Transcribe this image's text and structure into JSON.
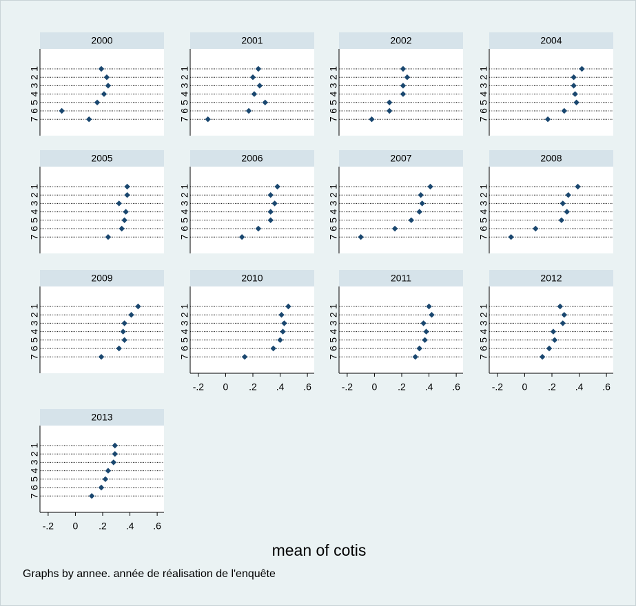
{
  "chart_data": [
    {
      "type": "dot",
      "title": "2000",
      "categories": [
        "1",
        "2",
        "3",
        "4",
        "5",
        "6",
        "7"
      ],
      "values": [
        0.19,
        0.23,
        0.24,
        0.21,
        0.16,
        -0.1,
        0.1
      ],
      "color": "#1a476f",
      "xlim": [
        -0.26,
        0.65
      ]
    },
    {
      "type": "dot",
      "title": "2001",
      "categories": [
        "1",
        "2",
        "3",
        "4",
        "5",
        "6",
        "7"
      ],
      "values": [
        0.24,
        0.2,
        0.25,
        0.21,
        0.29,
        0.17,
        -0.13
      ],
      "color": "#1a476f",
      "xlim": [
        -0.26,
        0.65
      ]
    },
    {
      "type": "dot",
      "title": "2002",
      "categories": [
        "1",
        "2",
        "3",
        "4",
        "5",
        "6",
        "7"
      ],
      "values": [
        0.21,
        0.24,
        0.21,
        0.21,
        0.11,
        0.11,
        -0.02
      ],
      "color": "#1a476f",
      "xlim": [
        -0.26,
        0.65
      ]
    },
    {
      "type": "dot",
      "title": "2004",
      "categories": [
        "1",
        "2",
        "3",
        "4",
        "5",
        "6",
        "7"
      ],
      "values": [
        0.42,
        0.36,
        0.36,
        0.37,
        0.38,
        0.29,
        0.17
      ],
      "color": "#1a476f",
      "xlim": [
        -0.26,
        0.65
      ]
    },
    {
      "type": "dot",
      "title": "2005",
      "categories": [
        "1",
        "2",
        "3",
        "4",
        "5",
        "6",
        "7"
      ],
      "values": [
        0.38,
        0.38,
        0.32,
        0.37,
        0.36,
        0.34,
        0.24
      ],
      "color": "#1a476f",
      "xlim": [
        -0.26,
        0.65
      ]
    },
    {
      "type": "dot",
      "title": "2006",
      "categories": [
        "1",
        "2",
        "3",
        "4",
        "5",
        "6",
        "7"
      ],
      "values": [
        0.38,
        0.33,
        0.36,
        0.33,
        0.33,
        0.24,
        0.12
      ],
      "color": "#1a476f",
      "xlim": [
        -0.26,
        0.65
      ]
    },
    {
      "type": "dot",
      "title": "2007",
      "categories": [
        "1",
        "2",
        "3",
        "4",
        "5",
        "6",
        "7"
      ],
      "values": [
        0.41,
        0.34,
        0.35,
        0.33,
        0.27,
        0.15,
        -0.1
      ],
      "color": "#1a476f",
      "xlim": [
        -0.26,
        0.65
      ]
    },
    {
      "type": "dot",
      "title": "2008",
      "categories": [
        "1",
        "2",
        "3",
        "4",
        "5",
        "6",
        "7"
      ],
      "values": [
        0.39,
        0.32,
        0.28,
        0.31,
        0.27,
        0.08,
        -0.1
      ],
      "color": "#1a476f",
      "xlim": [
        -0.26,
        0.65
      ]
    },
    {
      "type": "dot",
      "title": "2009",
      "categories": [
        "1",
        "2",
        "3",
        "4",
        "5",
        "6",
        "7"
      ],
      "values": [
        0.46,
        0.41,
        0.36,
        0.35,
        0.36,
        0.32,
        0.19
      ],
      "color": "#1a476f",
      "xlim": [
        -0.26,
        0.65
      ]
    },
    {
      "type": "dot",
      "title": "2010",
      "categories": [
        "1",
        "2",
        "3",
        "4",
        "5",
        "6",
        "7"
      ],
      "values": [
        0.46,
        0.41,
        0.43,
        0.42,
        0.4,
        0.35,
        0.14
      ],
      "color": "#1a476f",
      "xlim": [
        -0.26,
        0.65
      ],
      "xticks": [
        {
          "value": -0.2,
          "label": "-.2"
        },
        0,
        {
          "value": 0.2,
          "label": ".2"
        },
        {
          "value": 0.4,
          "label": ".4"
        },
        {
          "value": 0.6,
          "label": ".6"
        }
      ]
    },
    {
      "type": "dot",
      "title": "2011",
      "categories": [
        "1",
        "2",
        "3",
        "4",
        "5",
        "6",
        "7"
      ],
      "values": [
        0.4,
        0.42,
        0.36,
        0.38,
        0.37,
        0.33,
        0.3
      ],
      "color": "#1a476f",
      "xlim": [
        -0.26,
        0.65
      ],
      "xticks": [
        {
          "value": -0.2,
          "label": "-.2"
        },
        0,
        {
          "value": 0.2,
          "label": ".2"
        },
        {
          "value": 0.4,
          "label": ".4"
        },
        {
          "value": 0.6,
          "label": ".6"
        }
      ]
    },
    {
      "type": "dot",
      "title": "2012",
      "categories": [
        "1",
        "2",
        "3",
        "4",
        "5",
        "6",
        "7"
      ],
      "values": [
        0.26,
        0.29,
        0.28,
        0.21,
        0.22,
        0.18,
        0.13
      ],
      "color": "#1a476f",
      "xlim": [
        -0.26,
        0.65
      ],
      "xticks": [
        {
          "value": -0.2,
          "label": "-.2"
        },
        0,
        {
          "value": 0.2,
          "label": ".2"
        },
        {
          "value": 0.4,
          "label": ".4"
        },
        {
          "value": 0.6,
          "label": ".6"
        }
      ]
    },
    {
      "type": "dot",
      "title": "2013",
      "categories": [
        "1",
        "2",
        "3",
        "4",
        "5",
        "6",
        "7"
      ],
      "values": [
        0.29,
        0.29,
        0.28,
        0.24,
        0.22,
        0.19,
        0.12
      ],
      "color": "#1a476f",
      "xlim": [
        -0.26,
        0.65
      ],
      "xticks": [
        {
          "value": -0.2,
          "label": "-.2"
        },
        0,
        {
          "value": 0.2,
          "label": ".2"
        },
        {
          "value": 0.4,
          "label": ".4"
        },
        {
          "value": 0.6,
          "label": ".6"
        }
      ]
    }
  ],
  "xlabel": "mean of cotis",
  "note": "Graphs by annee. année de réalisation de l'enquête"
}
